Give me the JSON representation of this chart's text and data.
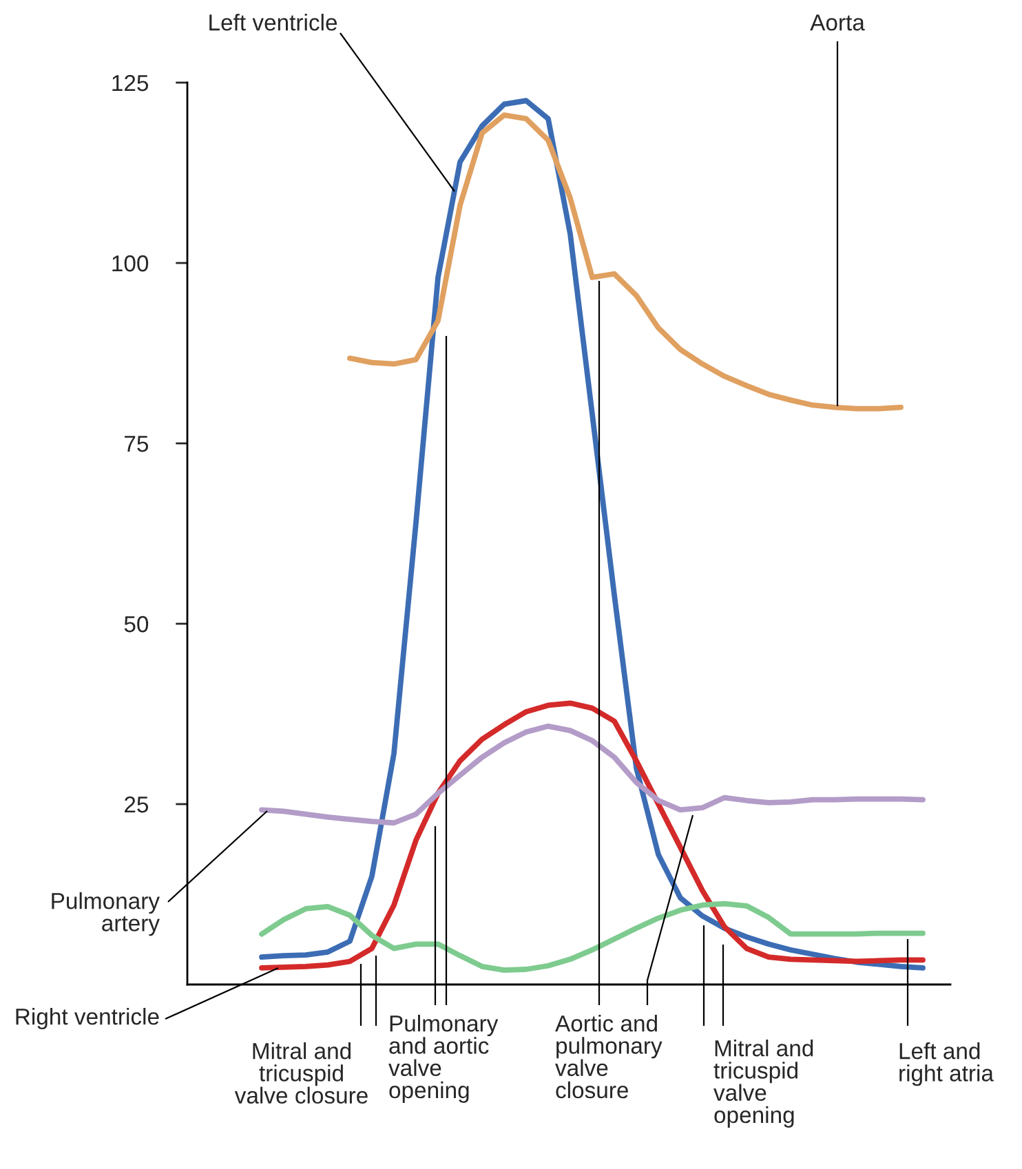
{
  "chart_data": {
    "type": "line",
    "categories": [
      null,
      null,
      null,
      null,
      null,
      null,
      null,
      null,
      null,
      null,
      null,
      null,
      null,
      null,
      null,
      null,
      null,
      null,
      null,
      null,
      null,
      null,
      null,
      null,
      null,
      null,
      null,
      null,
      null,
      null,
      null,
      null,
      null,
      null
    ],
    "series": [
      {
        "name": "Left ventricle",
        "color": "#3c6db4",
        "values": [
          null,
          null,
          null,
          3.8,
          4.0,
          4.1,
          4.5,
          6,
          15,
          32,
          64,
          98,
          114,
          119,
          122,
          122.5,
          120,
          104,
          79,
          54,
          30,
          18,
          12,
          9.5,
          7.8,
          6.6,
          5.6,
          4.8,
          4.2,
          3.6,
          3.1,
          2.8,
          2.5,
          2.3
        ]
      },
      {
        "name": "Aorta",
        "color": "#e0a060",
        "values": [
          null,
          null,
          null,
          null,
          null,
          null,
          null,
          86.8,
          86.2,
          86,
          86.6,
          92,
          108,
          118,
          120.5,
          120,
          117,
          109,
          98,
          98.5,
          95.5,
          91,
          88,
          86,
          84.3,
          83,
          81.8,
          81,
          80.3,
          80,
          79.8,
          79.8,
          80,
          null
        ]
      },
      {
        "name": "Right ventricle",
        "color": "#d42a2a",
        "values": [
          null,
          null,
          null,
          2.3,
          2.4,
          2.5,
          2.7,
          3.2,
          5,
          11,
          20,
          26.5,
          31,
          34,
          36,
          37.8,
          38.7,
          39,
          38.3,
          36.5,
          31,
          25,
          19,
          13,
          8,
          5,
          3.8,
          3.5,
          3.4,
          3.3,
          3.2,
          3.3,
          3.4,
          3.4
        ]
      },
      {
        "name": "Pulmonary\nartery",
        "color": "#b39cc8",
        "values": [
          null,
          null,
          null,
          24.2,
          24,
          23.6,
          23.2,
          22.9,
          22.6,
          22.4,
          23.6,
          26.5,
          29,
          31.5,
          33.5,
          35,
          35.8,
          35.2,
          33.8,
          31.5,
          28,
          25.5,
          24.2,
          24.5,
          25.9,
          25.5,
          25.2,
          25.3,
          25.6,
          25.6,
          25.7,
          25.7,
          25.7,
          25.6
        ]
      },
      {
        "name": "Left and\nright atria",
        "color": "#7ecb8f",
        "values": [
          null,
          null,
          null,
          7,
          9,
          10.5,
          10.8,
          9.6,
          6.8,
          5,
          5.6,
          5.6,
          4,
          2.5,
          2,
          2.1,
          2.6,
          3.5,
          4.8,
          6.3,
          7.8,
          9.2,
          10.3,
          11,
          11.2,
          10.9,
          9.3,
          7,
          7,
          7,
          7,
          7.1,
          7.1,
          7.1
        ]
      }
    ],
    "ylim": [
      0,
      125
    ],
    "yticks": [
      25,
      50,
      75,
      100,
      125
    ],
    "tick_labels": "y",
    "grid": false,
    "legend": false,
    "annotations": [
      "Mitral and\ntricuspid\nvalve closure",
      "Pulmonary\nand aortic\nvalve\nopening",
      "Aortic and\npulmonary\nvalve\nclosure",
      "Mitral and\ntricuspid\nvalve\nopening"
    ]
  }
}
